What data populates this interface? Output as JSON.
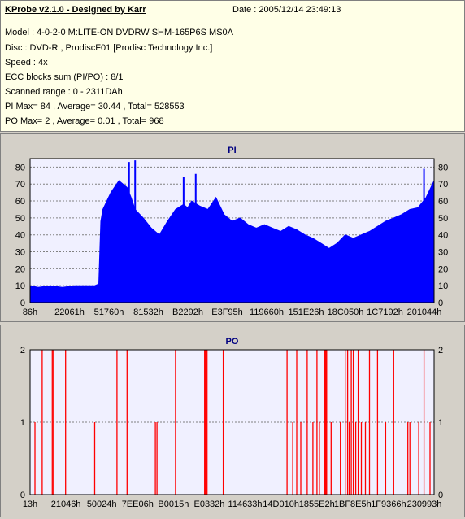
{
  "header": {
    "title": "KProbe v2.1.0 - Designed by Karr",
    "date": "Date : 2005/12/14 23:49:13",
    "lines": [
      "Model : 4-0-2-0 M:LITE-ON DVDRW SHM-165P6S MS0A",
      "Disc : DVD-R , ProdiscF01 [Prodisc Technology Inc.]",
      "Speed : 4x",
      "ECC blocks sum (PI/PO) : 8/1",
      "Scanned range : 0 - 2311DAh",
      "PI Max= 84 , Average= 30.44 , Total= 528553",
      "PO Max= 2 , Average= 0.01 , Total= 968"
    ]
  },
  "colors": {
    "pi_fill": "#0000ff",
    "po_bar": "#ff0000",
    "plot_bg": "#f0f0ff",
    "info_bg": "#ffffe7",
    "grid": "#808080"
  },
  "chart_data": [
    {
      "type": "area",
      "title": "PI",
      "ylim": [
        0,
        85
      ],
      "yticks": [
        0,
        10,
        20,
        30,
        40,
        50,
        60,
        70,
        80
      ],
      "xtick_labels": [
        "86h",
        "22061h",
        "51760h",
        "81532h",
        "B2292h",
        "E3F95h",
        "119660h",
        "151E26h",
        "18C050h",
        "1C7192h",
        "201044h"
      ],
      "grid": true,
      "x_fraction": [
        0,
        0.02,
        0.05,
        0.08,
        0.11,
        0.14,
        0.16,
        0.17,
        0.175,
        0.18,
        0.2,
        0.22,
        0.24,
        0.25,
        0.26,
        0.28,
        0.3,
        0.32,
        0.34,
        0.36,
        0.38,
        0.39,
        0.4,
        0.42,
        0.44,
        0.46,
        0.48,
        0.5,
        0.52,
        0.54,
        0.56,
        0.58,
        0.6,
        0.62,
        0.64,
        0.66,
        0.68,
        0.7,
        0.72,
        0.74,
        0.76,
        0.78,
        0.8,
        0.82,
        0.84,
        0.86,
        0.88,
        0.9,
        0.92,
        0.94,
        0.96,
        0.98,
        1.0
      ],
      "values": [
        10,
        9,
        10,
        9,
        10,
        10,
        10,
        11,
        48,
        55,
        65,
        72,
        68,
        62,
        55,
        50,
        44,
        40,
        48,
        55,
        58,
        56,
        60,
        57,
        55,
        62,
        52,
        48,
        50,
        46,
        44,
        46,
        44,
        42,
        45,
        43,
        40,
        38,
        35,
        32,
        35,
        40,
        38,
        40,
        42,
        45,
        48,
        50,
        52,
        55,
        56,
        62,
        72
      ],
      "peaks": [
        {
          "x_fraction": 0.245,
          "value": 83
        },
        {
          "x_fraction": 0.26,
          "value": 84
        },
        {
          "x_fraction": 0.38,
          "value": 74
        },
        {
          "x_fraction": 0.41,
          "value": 76
        },
        {
          "x_fraction": 0.975,
          "value": 79
        }
      ]
    },
    {
      "type": "bar",
      "title": "PO",
      "ylim": [
        0,
        2
      ],
      "yticks": [
        0,
        1,
        2
      ],
      "xtick_labels": [
        "13h",
        "21046h",
        "50024h",
        "7EE06h",
        "B0015h",
        "E0332h",
        "114633h",
        "14D010h",
        "1855E2h",
        "1BF8E5h",
        "1F9366h",
        "230993h"
      ],
      "grid": true,
      "events": [
        {
          "x_fraction": 0.012,
          "value": 1
        },
        {
          "x_fraction": 0.03,
          "value": 2
        },
        {
          "x_fraction": 0.055,
          "value": 2
        },
        {
          "x_fraction": 0.058,
          "value": 2
        },
        {
          "x_fraction": 0.088,
          "value": 2
        },
        {
          "x_fraction": 0.16,
          "value": 1
        },
        {
          "x_fraction": 0.215,
          "value": 2
        },
        {
          "x_fraction": 0.24,
          "value": 2
        },
        {
          "x_fraction": 0.31,
          "value": 1
        },
        {
          "x_fraction": 0.314,
          "value": 1
        },
        {
          "x_fraction": 0.36,
          "value": 2
        },
        {
          "x_fraction": 0.432,
          "value": 2
        },
        {
          "x_fraction": 0.434,
          "value": 2
        },
        {
          "x_fraction": 0.436,
          "value": 2
        },
        {
          "x_fraction": 0.438,
          "value": 2
        },
        {
          "x_fraction": 0.478,
          "value": 2
        },
        {
          "x_fraction": 0.636,
          "value": 2
        },
        {
          "x_fraction": 0.65,
          "value": 1
        },
        {
          "x_fraction": 0.66,
          "value": 2
        },
        {
          "x_fraction": 0.67,
          "value": 1
        },
        {
          "x_fraction": 0.686,
          "value": 2
        },
        {
          "x_fraction": 0.7,
          "value": 1
        },
        {
          "x_fraction": 0.71,
          "value": 2
        },
        {
          "x_fraction": 0.716,
          "value": 1
        },
        {
          "x_fraction": 0.728,
          "value": 2
        },
        {
          "x_fraction": 0.73,
          "value": 2
        },
        {
          "x_fraction": 0.732,
          "value": 2
        },
        {
          "x_fraction": 0.734,
          "value": 2
        },
        {
          "x_fraction": 0.745,
          "value": 1
        },
        {
          "x_fraction": 0.768,
          "value": 1
        },
        {
          "x_fraction": 0.78,
          "value": 2
        },
        {
          "x_fraction": 0.786,
          "value": 2
        },
        {
          "x_fraction": 0.79,
          "value": 1
        },
        {
          "x_fraction": 0.795,
          "value": 2
        },
        {
          "x_fraction": 0.8,
          "value": 2
        },
        {
          "x_fraction": 0.806,
          "value": 1
        },
        {
          "x_fraction": 0.812,
          "value": 2
        },
        {
          "x_fraction": 0.82,
          "value": 1
        },
        {
          "x_fraction": 0.83,
          "value": 1
        },
        {
          "x_fraction": 0.84,
          "value": 2
        },
        {
          "x_fraction": 0.86,
          "value": 2
        },
        {
          "x_fraction": 0.88,
          "value": 1
        },
        {
          "x_fraction": 0.9,
          "value": 2
        },
        {
          "x_fraction": 0.935,
          "value": 1
        },
        {
          "x_fraction": 0.94,
          "value": 1
        },
        {
          "x_fraction": 0.962,
          "value": 1
        },
        {
          "x_fraction": 0.975,
          "value": 2
        },
        {
          "x_fraction": 0.99,
          "value": 1
        }
      ]
    }
  ]
}
